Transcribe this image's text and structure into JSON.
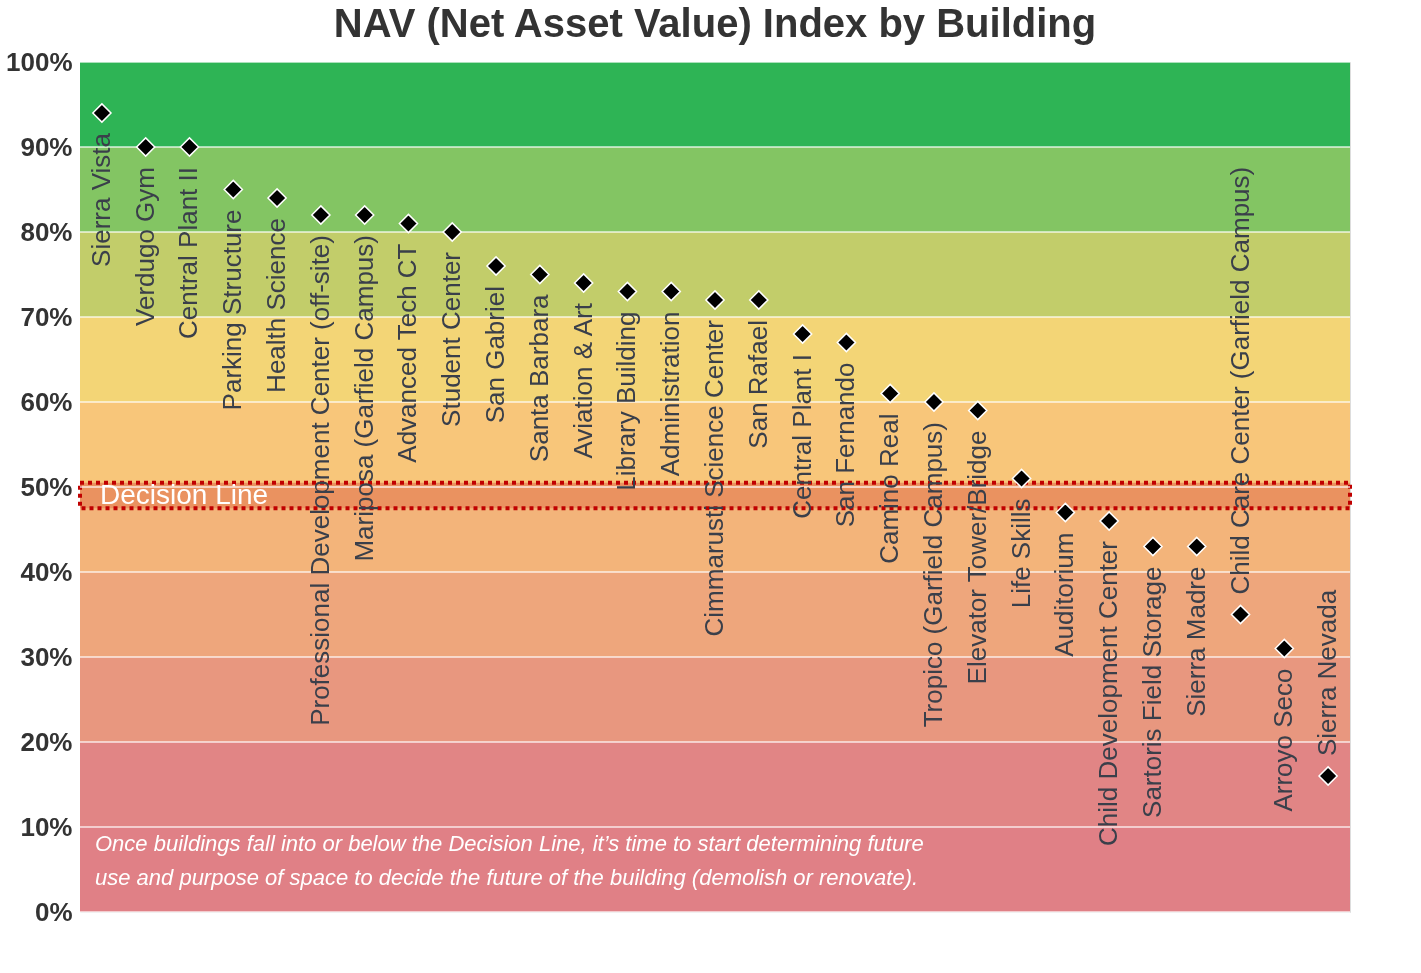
{
  "chart_data": {
    "type": "scatter",
    "title": "NAV (Net Asset Value) Index by Building",
    "categories": [
      "Sierra Vista",
      "Verdugo Gym",
      "Central Plant II",
      "Parking Structure",
      "Health Science",
      "Professional Development Center (off-site)",
      "Mariposa (Garfield Campus)",
      "Advanced Tech CT",
      "Student Center",
      "San Gabriel",
      "Santa Barbara",
      "Aviation & Art",
      "Library Building",
      "Administration",
      "Cimmarusti Science Center",
      "San Rafael",
      "Central Plant I",
      "San Fernando",
      "Camino Real",
      "Tropico (Garfield Campus)",
      "Elevator Tower/Bridge",
      "Life Skills",
      "Auditorium",
      "Child Development Center",
      "Sartoris Field Storage",
      "Sierra Madre",
      "Child Care Center (Garfield Campus)",
      "Arroyo Seco",
      "Sierra Nevada"
    ],
    "series": [
      {
        "color": "#000000",
        "values": [
          94,
          90,
          90,
          85,
          84,
          82,
          82,
          81,
          80,
          76,
          75,
          74,
          73,
          73,
          72,
          72,
          68,
          67,
          61,
          60,
          59,
          51,
          47,
          46,
          43,
          43,
          35,
          31,
          16
        ]
      }
    ],
    "marker": "diamond",
    "ylim": [
      0,
      100
    ],
    "yticks": [
      {
        "value": 0,
        "label": "0%"
      },
      {
        "value": 10,
        "label": "10%"
      },
      {
        "value": 20,
        "label": "20%"
      },
      {
        "value": 30,
        "label": "30%"
      },
      {
        "value": 40,
        "label": "40%"
      },
      {
        "value": 50,
        "label": "50%"
      },
      {
        "value": 60,
        "label": "60%"
      },
      {
        "value": 70,
        "label": "70%"
      },
      {
        "value": 80,
        "label": "80%"
      },
      {
        "value": 90,
        "label": "90%"
      },
      {
        "value": 100,
        "label": "100%"
      }
    ],
    "grid": "y",
    "bands": [
      {
        "axis": "y",
        "from": 0,
        "to": 10,
        "color": "#e08086"
      },
      {
        "axis": "y",
        "from": 10,
        "to": 20,
        "color": "#e18585"
      },
      {
        "axis": "y",
        "from": 20,
        "to": 30,
        "color": "#e8977f"
      },
      {
        "axis": "y",
        "from": 30,
        "to": 40,
        "color": "#eea67c"
      },
      {
        "axis": "y",
        "from": 40,
        "to": 50,
        "color": "#f3b47a"
      },
      {
        "axis": "y",
        "from": 50,
        "to": 60,
        "color": "#f8c67a"
      },
      {
        "axis": "y",
        "from": 60,
        "to": 70,
        "color": "#f3d576"
      },
      {
        "axis": "y",
        "from": 70,
        "to": 80,
        "color": "#c2cd6a"
      },
      {
        "axis": "y",
        "from": 80,
        "to": 90,
        "color": "#83c563"
      },
      {
        "axis": "y",
        "from": 90,
        "to": 100,
        "color": "#2eb455"
      },
      {
        "axis": "y",
        "from": 47.5,
        "to": 50.5,
        "label": "Decision Line",
        "color": "#ea9260"
      }
    ],
    "annotations": [
      "Once buildings fall into or below the Decision Line, it’s time to start determining future\nuse and purpose of space to decide the future of the building (demolish or renovate)."
    ]
  }
}
